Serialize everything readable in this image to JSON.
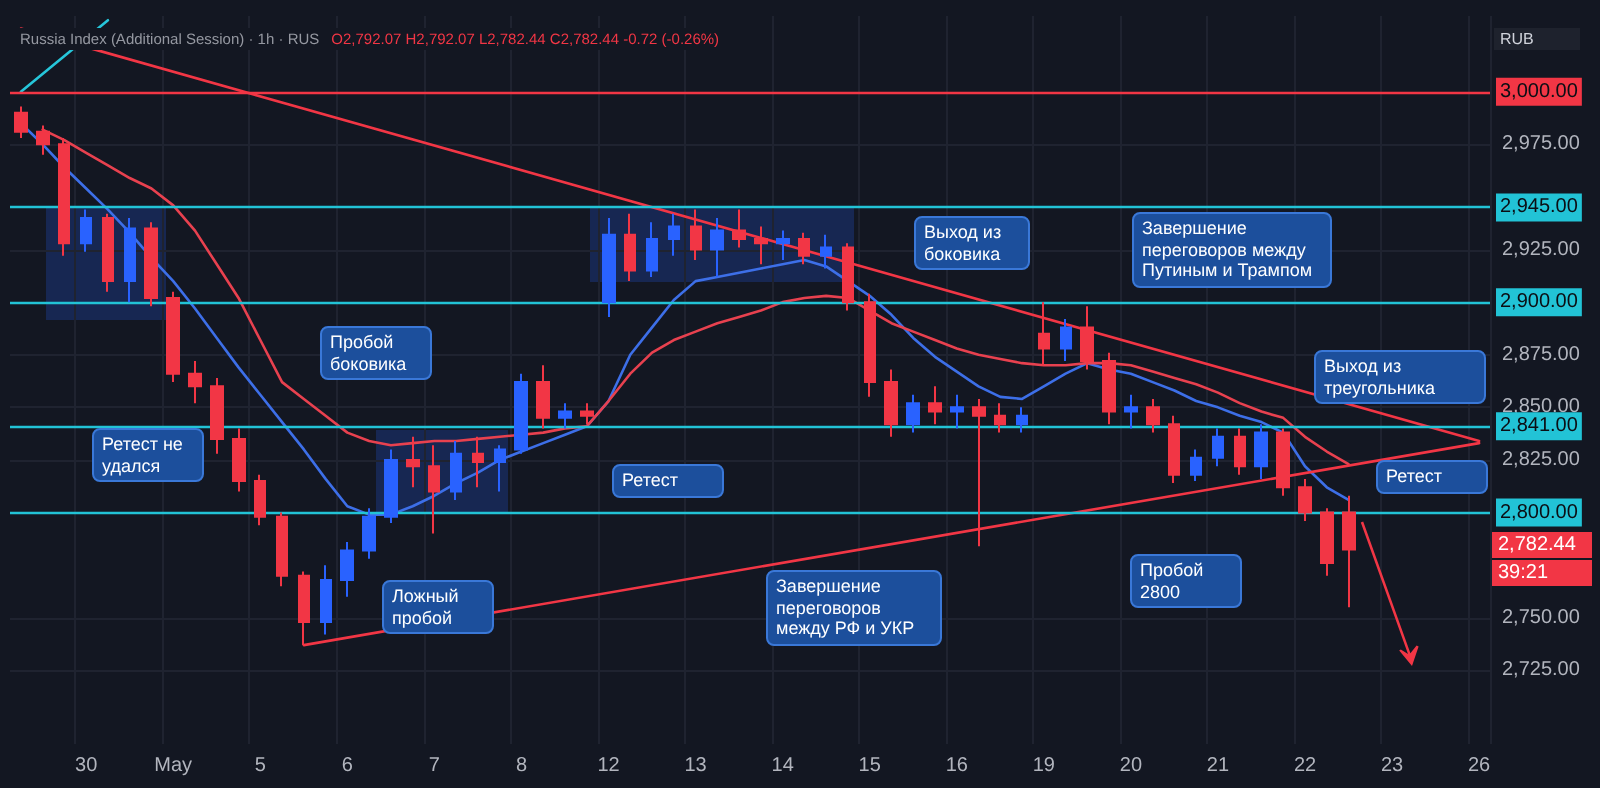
{
  "chart_data": {
    "type": "candlestick",
    "title": "Russia Index (Additional Session) · 1h · RUS",
    "subtitle": "O2,792.07 H2,792.07 L2,782.44 C2,782.44 -0.72 (-0.26%)",
    "categories": [
      null,
      null,
      null,
      "30",
      null,
      null,
      null,
      "May",
      null,
      null,
      null,
      "5",
      null,
      null,
      null,
      "6",
      null,
      null,
      null,
      "7",
      null,
      null,
      null,
      "8",
      null,
      null,
      null,
      "12",
      null,
      null,
      null,
      "13",
      null,
      null,
      null,
      "14",
      null,
      null,
      null,
      "15",
      null,
      null,
      null,
      "16",
      null,
      null,
      null,
      "19",
      null,
      null,
      null,
      "20",
      null,
      null,
      null,
      "21",
      null,
      null,
      null,
      "22",
      null,
      null,
      null,
      "23",
      null,
      null,
      null,
      "26"
    ],
    "ohlc": [
      [
        2990,
        2993,
        2978,
        2981
      ],
      [
        2981,
        2984,
        2970,
        2975
      ],
      [
        2975,
        2978,
        2922,
        2928
      ],
      [
        2928,
        2944,
        2924,
        2940
      ],
      [
        2940,
        2942,
        2905,
        2910
      ],
      [
        2910,
        2940,
        2900,
        2935
      ],
      [
        2935,
        2938,
        2898,
        2902
      ],
      [
        2902,
        2905,
        2862,
        2866
      ],
      [
        2866,
        2872,
        2852,
        2860
      ],
      [
        2860,
        2864,
        2828,
        2835
      ],
      [
        2835,
        2840,
        2810,
        2815
      ],
      [
        2815,
        2818,
        2794,
        2798
      ],
      [
        2798,
        2800,
        2765,
        2770
      ],
      [
        2770,
        2772,
        2737,
        2748
      ],
      [
        2748,
        2775,
        2742,
        2768
      ],
      [
        2768,
        2786,
        2760,
        2782
      ],
      [
        2782,
        2802,
        2778,
        2798
      ],
      [
        2798,
        2830,
        2795,
        2825
      ],
      [
        2825,
        2836,
        2812,
        2822
      ],
      [
        2822,
        2832,
        2790,
        2810
      ],
      [
        2810,
        2834,
        2806,
        2828
      ],
      [
        2828,
        2836,
        2812,
        2824
      ],
      [
        2824,
        2832,
        2810,
        2830
      ],
      [
        2830,
        2866,
        2828,
        2862
      ],
      [
        2862,
        2870,
        2840,
        2845
      ],
      [
        2845,
        2852,
        2840,
        2848
      ],
      [
        2848,
        2852,
        2842,
        2846
      ],
      [
        2900,
        2940,
        2893,
        2932
      ],
      [
        2932,
        2942,
        2910,
        2915
      ],
      [
        2915,
        2938,
        2912,
        2930
      ],
      [
        2930,
        2942,
        2922,
        2936
      ],
      [
        2936,
        2944,
        2920,
        2925
      ],
      [
        2925,
        2940,
        2912,
        2934
      ],
      [
        2934,
        2944,
        2926,
        2930
      ],
      [
        2930,
        2936,
        2918,
        2928
      ],
      [
        2928,
        2934,
        2920,
        2930
      ],
      [
        2930,
        2933,
        2918,
        2922
      ],
      [
        2922,
        2932,
        2916,
        2926
      ],
      [
        2926,
        2928,
        2896,
        2900
      ],
      [
        2900,
        2904,
        2855,
        2862
      ],
      [
        2862,
        2868,
        2836,
        2842
      ],
      [
        2842,
        2856,
        2838,
        2852
      ],
      [
        2852,
        2860,
        2842,
        2848
      ],
      [
        2848,
        2856,
        2840,
        2850
      ],
      [
        2850,
        2854,
        2784,
        2846
      ],
      [
        2846,
        2852,
        2838,
        2842
      ],
      [
        2842,
        2850,
        2838,
        2846
      ],
      [
        2885,
        2900,
        2870,
        2878
      ],
      [
        2878,
        2892,
        2872,
        2888
      ],
      [
        2888,
        2898,
        2868,
        2872
      ],
      [
        2872,
        2876,
        2842,
        2848
      ],
      [
        2848,
        2856,
        2840,
        2850
      ],
      [
        2850,
        2854,
        2838,
        2842
      ],
      [
        2842,
        2846,
        2814,
        2818
      ],
      [
        2818,
        2830,
        2815,
        2826
      ],
      [
        2826,
        2840,
        2822,
        2836
      ],
      [
        2836,
        2840,
        2818,
        2822
      ],
      [
        2822,
        2842,
        2816,
        2838
      ],
      [
        2838,
        2840,
        2808,
        2812
      ],
      [
        2812,
        2816,
        2796,
        2800
      ],
      [
        2800,
        2802,
        2770,
        2776
      ],
      [
        2800,
        2808,
        2755,
        2782.44
      ],
      null,
      null,
      null,
      null,
      null,
      null
    ],
    "colors": [
      "#f23645",
      "#f23645",
      "#f23645",
      "#2962ff",
      "#f23645",
      "#2962ff",
      "#f23645",
      "#f23645",
      "#f23645",
      "#f23645",
      "#f23645",
      "#f23645",
      "#f23645",
      "#f23645",
      "#2962ff",
      "#2962ff",
      "#2962ff",
      "#2962ff",
      "#f23645",
      "#f23645",
      "#2962ff",
      "#f23645",
      "#2962ff",
      "#2962ff",
      "#f23645",
      "#2962ff",
      "#f23645",
      "#2962ff",
      "#f23645",
      "#2962ff",
      "#2962ff",
      "#f23645",
      "#2962ff",
      "#f23645",
      "#f23645",
      "#2962ff",
      "#f23645",
      "#2962ff",
      "#f23645",
      "#f23645",
      "#f23645",
      "#2962ff",
      "#f23645",
      "#2962ff",
      "#f23645",
      "#f23645",
      "#2962ff",
      "#f23645",
      "#2962ff",
      "#f23645",
      "#f23645",
      "#2962ff",
      "#f23645",
      "#f23645",
      "#2962ff",
      "#2962ff",
      "#f23645",
      "#2962ff",
      "#f23645",
      "#f23645",
      "#f23645",
      "#f23645",
      null,
      null,
      null,
      null,
      null,
      null
    ],
    "series": [
      {
        "type": "line",
        "color": "#3d6fe8",
        "values": [
          2985,
          2975,
          2964,
          2954,
          2944,
          2933,
          2921,
          2910,
          2897,
          2883,
          2869,
          2856,
          2843,
          2830,
          2816,
          2803,
          2799,
          2799,
          2803,
          2808,
          2814,
          2819,
          2825,
          2829,
          2833,
          2837,
          2841,
          2853,
          2875,
          2888,
          2901,
          2910,
          2912,
          2914,
          2916,
          2918,
          2920,
          2917,
          2910,
          2903,
          2894,
          2883,
          2874,
          2867,
          2860,
          2855,
          2854,
          2860,
          2866,
          2871,
          2868,
          2866,
          2862,
          2858,
          2853,
          2850,
          2846,
          2843,
          2838,
          2822,
          2812,
          2806,
          null,
          null,
          null,
          null,
          null,
          null
        ]
      },
      {
        "type": "line",
        "color": "#e8414f",
        "values": [
          null,
          2982,
          2977,
          2971,
          2965,
          2959,
          2954,
          2946,
          2934,
          2918,
          2902,
          2882,
          2862,
          2854,
          2846,
          2838,
          2834,
          2832,
          2833,
          2834,
          2834,
          2835,
          2836,
          2837,
          2838,
          2840,
          2841,
          2853,
          2866,
          2876,
          2882,
          2886,
          2890,
          2893,
          2896,
          2900,
          2902,
          2903,
          2902,
          2896,
          2890,
          2886,
          2882,
          2878,
          2875,
          2873,
          2871,
          2870,
          2870,
          2871,
          2871,
          2870,
          2867,
          2864,
          2861,
          2857,
          2852,
          2848,
          2845,
          2836,
          2829,
          2823,
          null,
          null,
          null,
          null,
          null,
          null
        ]
      },
      {
        "type": "line",
        "color": "#f23645",
        "values": [
          3030,
          null,
          null,
          null,
          null,
          null,
          null,
          null,
          null,
          null,
          null,
          null,
          null,
          null,
          null,
          null,
          null,
          null,
          null,
          null,
          null,
          null,
          null,
          null,
          null,
          null,
          null,
          null,
          null,
          null,
          null,
          null,
          null,
          null,
          null,
          null,
          null,
          null,
          null,
          null,
          null,
          null,
          null,
          null,
          null,
          null,
          null,
          null,
          null,
          null,
          null,
          null,
          null,
          null,
          null,
          null,
          null,
          null,
          null,
          null,
          null,
          null,
          null,
          null,
          null,
          null,
          null,
          2834
        ]
      },
      {
        "type": "line",
        "color": "#f23645",
        "values": [
          null,
          null,
          null,
          null,
          null,
          null,
          null,
          null,
          null,
          null,
          null,
          null,
          null,
          2737,
          null,
          null,
          null,
          null,
          null,
          null,
          null,
          null,
          null,
          null,
          null,
          null,
          null,
          null,
          null,
          null,
          null,
          null,
          null,
          null,
          null,
          null,
          null,
          null,
          null,
          null,
          null,
          null,
          null,
          null,
          null,
          null,
          null,
          null,
          null,
          null,
          null,
          null,
          null,
          null,
          null,
          null,
          null,
          null,
          null,
          null,
          null,
          null,
          null,
          null,
          null,
          null,
          null,
          2833
        ]
      },
      {
        "type": "line",
        "color": "#26c6da",
        "values": [
          3000,
          null,
          null,
          null,
          3034,
          null,
          null,
          null,
          null,
          null,
          null,
          null,
          null,
          null,
          null,
          null,
          null,
          null,
          null,
          null,
          null,
          null,
          null,
          null,
          null,
          null,
          null,
          null,
          null,
          null,
          null,
          null,
          null,
          null,
          null,
          null,
          null,
          null,
          null,
          null,
          null,
          null,
          null,
          null,
          null,
          null,
          null,
          null,
          null,
          null,
          null,
          null,
          null,
          null,
          null,
          null,
          null,
          null,
          null,
          null,
          null,
          null,
          null,
          null,
          null,
          null,
          null,
          null
        ]
      }
    ],
    "ylim": [
      2690,
      3036
    ],
    "yticks": [
      {
        "value": 2725,
        "label": "2,725.00"
      },
      {
        "value": 2750,
        "label": "2,750.00"
      },
      {
        "value": 2825,
        "label": "2,825.00"
      },
      {
        "value": 2850,
        "label": "2,850.00"
      },
      {
        "value": 2875,
        "label": "2,875.00"
      },
      {
        "value": 2925,
        "label": "2,925.00"
      },
      {
        "value": 2975,
        "label": "2,975.00"
      }
    ],
    "ref_lines": [
      {
        "axis": "y",
        "value": 3000,
        "label": "3,000.00",
        "color": "#f23645"
      },
      {
        "axis": "y",
        "value": 2945,
        "label": "2,945.00",
        "color": "#22c3d6"
      },
      {
        "axis": "y",
        "value": 2900,
        "label": "2,900.00",
        "color": "#22c3d6"
      },
      {
        "axis": "y",
        "value": 2841,
        "label": "2,841.00",
        "color": "#22c3d6"
      },
      {
        "axis": "y",
        "value": 2800,
        "label": "2,800.00",
        "color": "#22c3d6"
      }
    ],
    "annotations": [
      "RUB",
      "Ретест не удался",
      "Пробой боковика",
      "Ложный пробой",
      "Ретест",
      "Выход из боковика",
      "Завершение переговоров между Путиным и Трампом",
      "Завершение переговоров между РФ и УКР",
      "Пробой 2800",
      "Выход из треугольника",
      "Ретест",
      "2,782.44",
      "39:21"
    ],
    "grid": true,
    "marker": "none"
  }
}
